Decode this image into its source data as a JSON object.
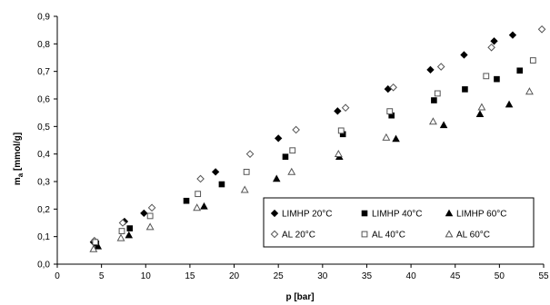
{
  "chart_data": {
    "type": "scatter",
    "title": "",
    "xlabel": "p [bar]",
    "ylabel_main": "m",
    "ylabel_sub": "a",
    "ylabel_unit": " [mmol/g]",
    "xlim": [
      0,
      55
    ],
    "ylim": [
      0,
      0.9
    ],
    "x_ticks": [
      "0",
      "5",
      "10",
      "15",
      "20",
      "25",
      "30",
      "35",
      "40",
      "45",
      "50",
      "55"
    ],
    "y_ticks": [
      "0,0",
      "0,1",
      "0,2",
      "0,3",
      "0,4",
      "0,5",
      "0,6",
      "0,7",
      "0,8",
      "0,9"
    ],
    "grid": "none",
    "legend_position": "bottom-right",
    "series": [
      {
        "name": "LIMHP 20°C",
        "marker": "diamond-filled",
        "points": [
          [
            4.1,
            0.08
          ],
          [
            7.6,
            0.155
          ],
          [
            9.8,
            0.185
          ],
          [
            17.9,
            0.335
          ],
          [
            25,
            0.457
          ],
          [
            31.7,
            0.556
          ],
          [
            37.4,
            0.636
          ],
          [
            42.2,
            0.706
          ],
          [
            46,
            0.76
          ],
          [
            49.4,
            0.81
          ],
          [
            51.5,
            0.832
          ]
        ]
      },
      {
        "name": "LIMHP 40°C",
        "marker": "square-filled",
        "points": [
          [
            4.4,
            0.075
          ],
          [
            8.2,
            0.13
          ],
          [
            14.6,
            0.23
          ],
          [
            18.6,
            0.29
          ],
          [
            25.8,
            0.39
          ],
          [
            32.3,
            0.472
          ],
          [
            37.8,
            0.54
          ],
          [
            42.6,
            0.595
          ],
          [
            46.1,
            0.635
          ],
          [
            49.7,
            0.672
          ],
          [
            52.3,
            0.703
          ]
        ]
      },
      {
        "name": "LIMHP 60°C",
        "marker": "triangle-filled",
        "points": [
          [
            4.6,
            0.065
          ],
          [
            8.1,
            0.105
          ],
          [
            16.6,
            0.21
          ],
          [
            24.8,
            0.31
          ],
          [
            31.9,
            0.39
          ],
          [
            38.3,
            0.455
          ],
          [
            43.7,
            0.505
          ],
          [
            47.8,
            0.545
          ],
          [
            51.1,
            0.58
          ]
        ]
      },
      {
        "name": "AL 20°C",
        "marker": "diamond-open",
        "points": [
          [
            4.2,
            0.085
          ],
          [
            7.4,
            0.15
          ],
          [
            10.7,
            0.205
          ],
          [
            16.2,
            0.31
          ],
          [
            21.8,
            0.4
          ],
          [
            27,
            0.488
          ],
          [
            32.6,
            0.568
          ],
          [
            38,
            0.642
          ],
          [
            43.4,
            0.717
          ],
          [
            49.1,
            0.787
          ],
          [
            54.8,
            0.853
          ]
        ]
      },
      {
        "name": "AL 40°C",
        "marker": "square-open",
        "points": [
          [
            4.3,
            0.08
          ],
          [
            7.3,
            0.12
          ],
          [
            10.5,
            0.175
          ],
          [
            15.9,
            0.255
          ],
          [
            21.4,
            0.335
          ],
          [
            26.6,
            0.413
          ],
          [
            32.1,
            0.485
          ],
          [
            37.6,
            0.555
          ],
          [
            43,
            0.62
          ],
          [
            48.5,
            0.683
          ],
          [
            53.8,
            0.74
          ]
        ]
      },
      {
        "name": "AL 60°C",
        "marker": "triangle-open",
        "points": [
          [
            4.1,
            0.055
          ],
          [
            7.2,
            0.095
          ],
          [
            10.5,
            0.135
          ],
          [
            15.8,
            0.205
          ],
          [
            21.2,
            0.27
          ],
          [
            26.5,
            0.335
          ],
          [
            31.8,
            0.4
          ],
          [
            37.2,
            0.46
          ],
          [
            42.5,
            0.518
          ],
          [
            48,
            0.57
          ],
          [
            53.4,
            0.627
          ]
        ]
      }
    ]
  }
}
